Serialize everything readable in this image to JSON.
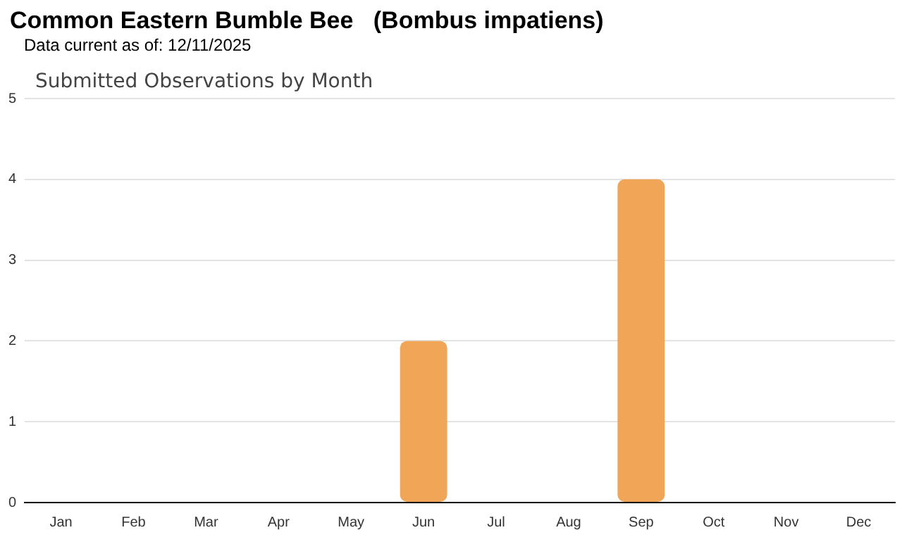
{
  "chart_data": {
    "type": "bar",
    "title": "Common Eastern Bumble Bee   (Bombus impatiens)",
    "subtitle": "Data current as of: 12/11/2025",
    "annotations": [
      "Submitted Observations by Month"
    ],
    "categories": [
      "Jan",
      "Feb",
      "Mar",
      "Apr",
      "May",
      "Jun",
      "Jul",
      "Aug",
      "Sep",
      "Oct",
      "Nov",
      "Dec"
    ],
    "values": [
      0,
      0,
      0,
      0,
      0,
      2,
      0,
      0,
      4,
      0,
      0,
      0
    ],
    "color": "#f0a557",
    "ylim": [
      0,
      5
    ],
    "yticks": [
      0,
      1,
      2,
      3,
      4,
      5
    ],
    "grid": "y"
  }
}
